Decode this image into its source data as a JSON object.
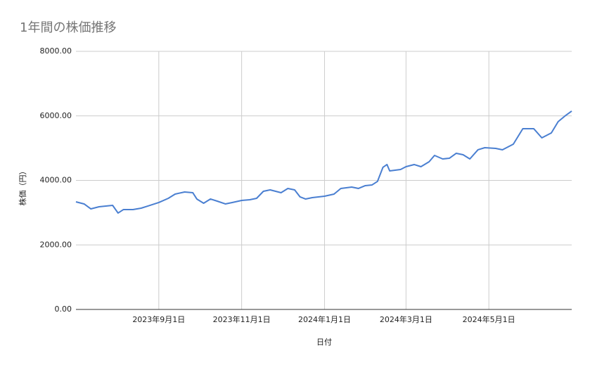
{
  "chart_data": {
    "type": "line",
    "title": "1年間の株価推移",
    "x_label": "日付",
    "y_label": "株価（円）",
    "x": [
      "2023-07-02",
      "2023-07-08",
      "2023-07-13",
      "2023-07-19",
      "2023-07-24",
      "2023-07-29",
      "2023-08-02",
      "2023-08-06",
      "2023-08-13",
      "2023-08-19",
      "2023-08-24",
      "2023-09-01",
      "2023-09-08",
      "2023-09-13",
      "2023-09-20",
      "2023-09-26",
      "2023-09-29",
      "2023-10-04",
      "2023-10-09",
      "2023-10-14",
      "2023-10-20",
      "2023-10-25",
      "2023-11-01",
      "2023-11-07",
      "2023-11-12",
      "2023-11-17",
      "2023-11-22",
      "2023-11-30",
      "2023-12-05",
      "2023-12-10",
      "2023-12-14",
      "2023-12-18",
      "2023-12-23",
      "2024-01-01",
      "2024-01-08",
      "2024-01-13",
      "2024-01-21",
      "2024-01-26",
      "2024-01-31",
      "2024-02-05",
      "2024-02-09",
      "2024-02-13",
      "2024-02-16",
      "2024-02-18",
      "2024-02-26",
      "2024-03-01",
      "2024-03-07",
      "2024-03-12",
      "2024-03-18",
      "2024-03-22",
      "2024-03-28",
      "2024-04-02",
      "2024-04-07",
      "2024-04-12",
      "2024-04-17",
      "2024-04-23",
      "2024-04-28",
      "2024-05-06",
      "2024-05-11",
      "2024-05-19",
      "2024-05-26",
      "2024-06-03",
      "2024-06-09",
      "2024-06-16",
      "2024-06-21",
      "2024-06-26",
      "2024-07-01"
    ],
    "series": [
      {
        "name": "株価",
        "color": "#4a7fd1",
        "values": [
          3335,
          3270,
          3117,
          3183,
          3205,
          3226,
          2987,
          3096,
          3096,
          3139,
          3205,
          3314,
          3444,
          3575,
          3641,
          3619,
          3423,
          3292,
          3423,
          3357,
          3270,
          3314,
          3379,
          3401,
          3444,
          3662,
          3706,
          3619,
          3750,
          3706,
          3488,
          3423,
          3466,
          3510,
          3575,
          3750,
          3793,
          3750,
          3837,
          3859,
          3968,
          4404,
          4491,
          4295,
          4338,
          4425,
          4491,
          4425,
          4578,
          4774,
          4665,
          4687,
          4840,
          4796,
          4665,
          4949,
          5014,
          4992,
          4949,
          5123,
          5603,
          5603,
          5319,
          5472,
          5821,
          5995,
          6148
        ]
      }
    ],
    "xlim": [
      "2023-07-02",
      "2024-07-01"
    ],
    "xticks": [
      {
        "value": "2023-09-01",
        "label": "2023年9月1日"
      },
      {
        "value": "2023-11-01",
        "label": "2023年11月1日"
      },
      {
        "value": "2024-01-01",
        "label": "2024年1月1日"
      },
      {
        "value": "2024-03-01",
        "label": "2024年3月1日"
      },
      {
        "value": "2024-05-01",
        "label": "2024年5月1日"
      }
    ],
    "ylim": [
      0,
      8000
    ],
    "yticks": [
      {
        "value": 0,
        "label": "0.00"
      },
      {
        "value": 2000,
        "label": "2000.00"
      },
      {
        "value": 4000,
        "label": "4000.00"
      },
      {
        "value": 6000,
        "label": "6000.00"
      },
      {
        "value": 8000,
        "label": "8000.00"
      }
    ],
    "grid": true
  }
}
